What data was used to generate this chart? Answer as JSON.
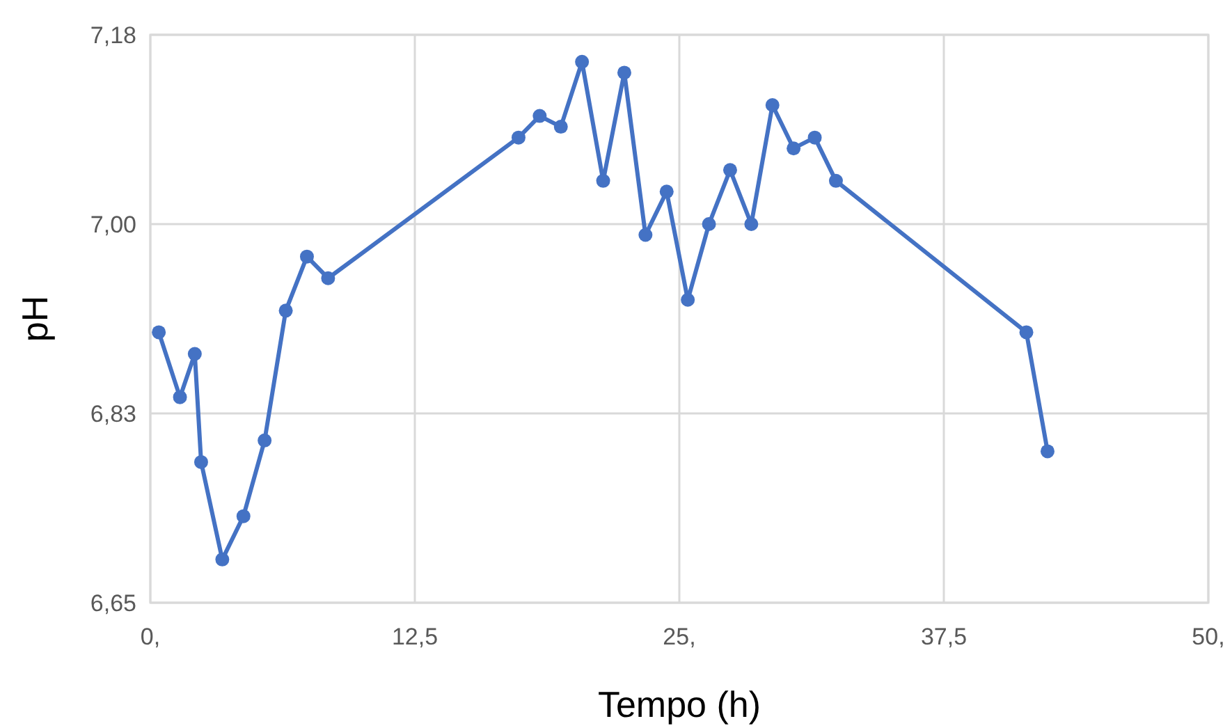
{
  "chart_data": {
    "type": "line",
    "xlabel": "Tempo (h)",
    "ylabel": "pH",
    "xlim": [
      0,
      50
    ],
    "xticks": [
      {
        "value": 0,
        "label": "0,"
      },
      {
        "value": 12.5,
        "label": "12,5"
      },
      {
        "value": 25,
        "label": "25,"
      },
      {
        "value": 37.5,
        "label": "37,5"
      },
      {
        "value": 50,
        "label": "50,"
      }
    ],
    "ylim": [
      6.65,
      7.175
    ],
    "yticks": [
      {
        "value": 6.65,
        "label": "6,65"
      },
      {
        "value": 6.825,
        "label": "6,83"
      },
      {
        "value": 7.0,
        "label": "7,00"
      },
      {
        "value": 7.175,
        "label": "7,18"
      }
    ],
    "grid": true,
    "marker": "circle",
    "line_style": "solid",
    "series": [
      {
        "color": "#4472c4",
        "x": [
          0.4,
          1.4,
          2.1,
          2.4,
          3.4,
          4.4,
          5.4,
          6.4,
          7.4,
          8.4,
          17.4,
          18.4,
          19.4,
          20.4,
          21.4,
          22.4,
          23.4,
          24.4,
          25.4,
          26.4,
          27.4,
          28.4,
          29.4,
          30.4,
          31.4,
          32.4,
          41.4,
          42.4
        ],
        "values": [
          6.9,
          6.84,
          6.88,
          6.78,
          6.69,
          6.73,
          6.8,
          6.92,
          6.97,
          6.95,
          7.08,
          7.1,
          7.09,
          7.15,
          7.04,
          7.14,
          6.99,
          7.03,
          6.93,
          7.0,
          7.05,
          7.0,
          7.11,
          7.07,
          7.08,
          7.04,
          6.9,
          6.79
        ]
      }
    ]
  }
}
